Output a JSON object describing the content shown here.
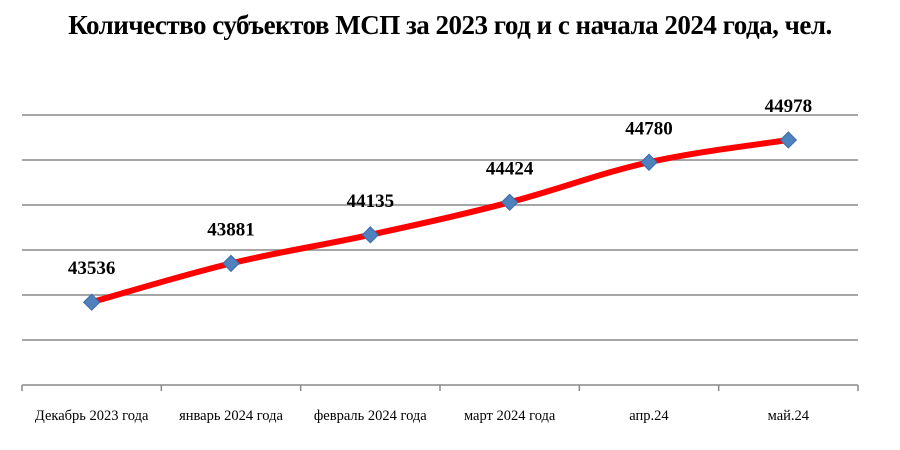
{
  "chart_data": {
    "type": "line",
    "title": "Количество субъектов МСП за 2023 год и с начала 2024 года, чел.",
    "categories": [
      "Декабрь 2023 года",
      "январь 2024 года",
      "февраль 2024 года",
      "март 2024 года",
      "апр.24",
      "май.24"
    ],
    "series": [
      {
        "values": [
          43536,
          43881,
          44135,
          44424,
          44780,
          44978
        ]
      }
    ],
    "xlabel": "",
    "ylabel": "",
    "ylim": [
      42800,
      45200
    ],
    "grid": true,
    "legend": "none",
    "colors": {
      "line": "#ff0000",
      "marker": "#4f81bd",
      "grid": "#888888"
    }
  }
}
